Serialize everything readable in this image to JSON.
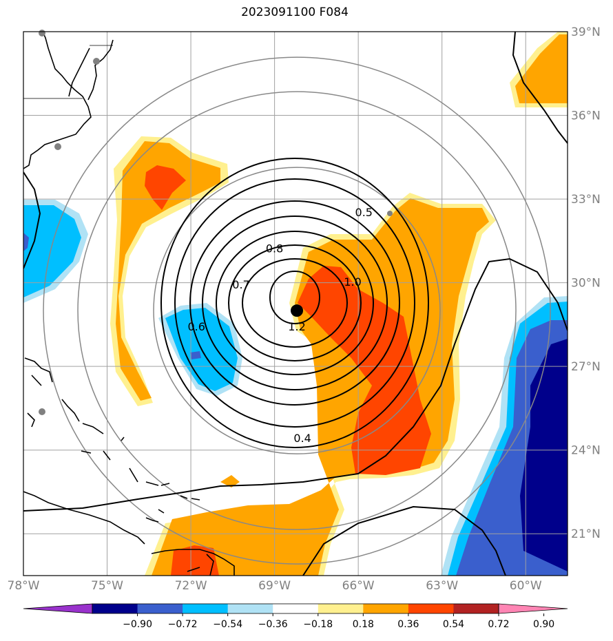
{
  "title": "2023091100 F084",
  "map": {
    "projection": "lat-lon",
    "lon_range": [
      -78,
      -58.5
    ],
    "lat_range": [
      19.5,
      39
    ],
    "lon_ticks": [
      -78,
      -75,
      -72,
      -69,
      -66,
      -63,
      -60
    ],
    "lon_labels": [
      "78°W",
      "75°W",
      "72°W",
      "69°W",
      "66°W",
      "63°W",
      "60°W"
    ],
    "lat_ticks": [
      21,
      24,
      27,
      30,
      33,
      36,
      39
    ],
    "lat_labels": [
      "21°N",
      "24°N",
      "27°N",
      "30°N",
      "33°N",
      "36°N",
      "39°N"
    ],
    "grid": true,
    "storm_center": {
      "lon": -68.2,
      "lat": 29.0
    },
    "range_rings": "gray circles around storm center",
    "contour_labels": [
      {
        "text": "0.5",
        "lon": -65.8,
        "lat": 32.5
      },
      {
        "text": "0.8",
        "lon": -69.0,
        "lat": 31.2
      },
      {
        "text": "0.7",
        "lon": -70.2,
        "lat": 29.9
      },
      {
        "text": "1.0",
        "lon": -66.2,
        "lat": 30.0
      },
      {
        "text": "0.6",
        "lon": -71.8,
        "lat": 28.4
      },
      {
        "text": "1.2",
        "lon": -68.2,
        "lat": 28.4
      },
      {
        "text": "0.4",
        "lon": -68.0,
        "lat": 24.4
      }
    ]
  },
  "colorbar": {
    "ticks": [
      "−0.90",
      "−0.72",
      "−0.54",
      "−0.36",
      "−0.18",
      "0.18",
      "0.36",
      "0.54",
      "0.72",
      "0.90"
    ],
    "colors": [
      "#9932cc",
      "#00008b",
      "#3a5fcd",
      "#00bfff",
      "#b0e2f5",
      "#ffffff",
      "#fff08f",
      "#ffa500",
      "#ff4500",
      "#b22222",
      "#ff85b4"
    ],
    "extend": "both"
  },
  "colors": {
    "grid": "#a0a0a0",
    "ring": "#888888",
    "coast": "#000000"
  }
}
